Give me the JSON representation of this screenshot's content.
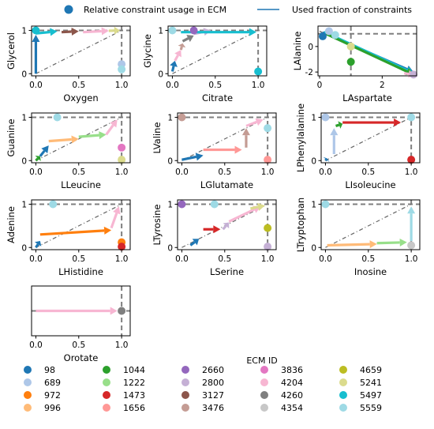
{
  "top_legend": {
    "marker_label": "Relative constraint usage in ECM",
    "line_label": "Used fraction of constraints",
    "marker_color": "#1f77b4",
    "line_color": "#1f77b4"
  },
  "colors": {
    "98": "#1f77b4",
    "689": "#aec7e8",
    "972": "#ff7f0e",
    "996": "#ffbb78",
    "1044": "#2ca02c",
    "1222": "#98df8a",
    "1473": "#d62728",
    "1656": "#ff9896",
    "2660": "#9467bd",
    "2800": "#c5b0d5",
    "3127": "#8c564b",
    "3476": "#c49c94",
    "3836": "#e377c2",
    "4204": "#f7b6d2",
    "4260": "#7f7f7f",
    "4354": "#c7c7c7",
    "4659": "#bcbd22",
    "5241": "#dbdb8d",
    "5497": "#17becf",
    "5559": "#9edae5"
  },
  "legend": {
    "title": "ECM ID",
    "items": [
      "98",
      "689",
      "972",
      "996",
      "1044",
      "1222",
      "1473",
      "1656",
      "2660",
      "2800",
      "3127",
      "3476",
      "3836",
      "4204",
      "4260",
      "4354",
      "4659",
      "5241",
      "5497",
      "5559"
    ]
  },
  "chart_data": [
    {
      "type": "line",
      "xlabel": "Oxygen",
      "ylabel": "Glycerol",
      "xlim": [
        -0.05,
        1.1
      ],
      "ylim": [
        -0.05,
        1.1
      ],
      "xticks": [
        "0.0",
        "0.5",
        "1.0"
      ],
      "yticks": [
        "0",
        "1"
      ],
      "vline": 1,
      "hline": 1,
      "diag": [
        [
          0,
          0
        ],
        [
          1,
          1
        ]
      ],
      "arrows": [
        {
          "id": "98",
          "from": [
            0,
            0
          ],
          "to": [
            0,
            0.9
          ]
        },
        {
          "id": "5497",
          "from": [
            0,
            0.93
          ],
          "to": [
            0.25,
            0.98
          ]
        },
        {
          "id": "3127",
          "from": [
            0.3,
            0.96
          ],
          "to": [
            0.5,
            0.98
          ]
        },
        {
          "id": "4204",
          "from": [
            0.55,
            0.96
          ],
          "to": [
            0.85,
            0.99
          ]
        },
        {
          "id": "5241",
          "from": [
            0.85,
            0.99
          ],
          "to": [
            0.98,
            1
          ]
        }
      ],
      "points": [
        {
          "id": "5497",
          "x": 0,
          "y": 1
        },
        {
          "id": "689",
          "x": 1,
          "y": 0.22
        },
        {
          "id": "5559",
          "x": 1,
          "y": 0.1
        }
      ]
    },
    {
      "type": "line",
      "xlabel": "Citrate",
      "ylabel": "Glycine",
      "xlim": [
        -0.05,
        1.1
      ],
      "ylim": [
        -0.05,
        1.1
      ],
      "xticks": [
        "0.0",
        "0.5",
        "1.0"
      ],
      "yticks": [
        "0",
        "1"
      ],
      "vline": 1,
      "hline": 1,
      "diag": [
        [
          0,
          0
        ],
        [
          1,
          1
        ]
      ],
      "arrows": [
        {
          "id": "98",
          "from": [
            0,
            0.05
          ],
          "to": [
            0.03,
            0.3
          ]
        },
        {
          "id": "4204",
          "from": [
            0.03,
            0.3
          ],
          "to": [
            0.1,
            0.55
          ]
        },
        {
          "id": "3476",
          "from": [
            0.1,
            0.55
          ],
          "to": [
            0.12,
            0.7
          ]
        },
        {
          "id": "4260",
          "from": [
            0.12,
            0.75
          ],
          "to": [
            0.25,
            0.88
          ]
        },
        {
          "id": "2800",
          "from": [
            0.25,
            0.92
          ],
          "to": [
            0.45,
            1
          ]
        },
        {
          "id": "5497",
          "from": [
            0.1,
            0.96
          ],
          "to": [
            0.98,
            0.96
          ]
        }
      ],
      "points": [
        {
          "id": "5559",
          "x": 0,
          "y": 1
        },
        {
          "id": "2660",
          "x": 0.25,
          "y": 1
        },
        {
          "id": "5497",
          "x": 1,
          "y": 0.05
        }
      ]
    },
    {
      "type": "line",
      "xlabel": "LAspartate",
      "ylabel": "LAlanine",
      "xlim": [
        -0.05,
        3.1
      ],
      "ylim": [
        -2.3,
        1.6
      ],
      "xticks": [
        "0",
        "2"
      ],
      "yticks": [
        "-2",
        "0"
      ],
      "vline": 1,
      "hline": 1,
      "diag": [
        [
          0,
          1.2
        ],
        [
          3,
          -2.2
        ]
      ],
      "arrows": [
        {
          "id": "98",
          "from": [
            0.1,
            1.1
          ],
          "to": [
            3,
            -2.0
          ]
        },
        {
          "id": "5497",
          "from": [
            0.15,
            1.15
          ],
          "to": [
            3,
            -2.1
          ]
        },
        {
          "id": "1044",
          "from": [
            0.2,
            1.0
          ],
          "to": [
            3,
            -2.2
          ]
        },
        {
          "id": "4204",
          "from": [
            2.7,
            -2.1
          ],
          "to": [
            3,
            -2.2
          ]
        }
      ],
      "points": [
        {
          "id": "98",
          "x": 0.1,
          "y": 0.8
        },
        {
          "id": "689",
          "x": 0.3,
          "y": 1.2
        },
        {
          "id": "5559",
          "x": 0.5,
          "y": 0.9
        },
        {
          "id": "5241",
          "x": 1,
          "y": 0
        },
        {
          "id": "1044",
          "x": 1,
          "y": -1.2
        },
        {
          "id": "2800",
          "x": 3,
          "y": -2.2
        }
      ]
    },
    {
      "type": "line",
      "xlabel": "LLeucine",
      "ylabel": "Guanine",
      "xlim": [
        -0.05,
        1.1
      ],
      "ylim": [
        -0.05,
        1.1
      ],
      "xticks": [
        "0.0",
        "0.5",
        "1.0"
      ],
      "yticks": [
        "0",
        "1"
      ],
      "vline": 1,
      "hline": 1,
      "diag": [
        [
          0,
          0
        ],
        [
          1,
          1
        ]
      ],
      "arrows": [
        {
          "id": "1044",
          "from": [
            0,
            0
          ],
          "to": [
            0.05,
            0.1
          ]
        },
        {
          "id": "98",
          "from": [
            0.05,
            0.1
          ],
          "to": [
            0.15,
            0.35
          ]
        },
        {
          "id": "996",
          "from": [
            0.15,
            0.45
          ],
          "to": [
            0.5,
            0.5
          ]
        },
        {
          "id": "1222",
          "from": [
            0.5,
            0.55
          ],
          "to": [
            0.82,
            0.6
          ]
        },
        {
          "id": "4204",
          "from": [
            0.82,
            0.6
          ],
          "to": [
            0.95,
            0.95
          ]
        }
      ],
      "points": [
        {
          "id": "5559",
          "x": 0.25,
          "y": 1
        },
        {
          "id": "3836",
          "x": 1,
          "y": 0.3
        },
        {
          "id": "5241",
          "x": 1,
          "y": 0.02
        }
      ]
    },
    {
      "type": "line",
      "xlabel": "LGlutamate",
      "ylabel": "LValine",
      "xlim": [
        -0.05,
        1.1
      ],
      "ylim": [
        -0.05,
        1.1
      ],
      "xticks": [
        "0.0",
        "0.5",
        "1.0"
      ],
      "yticks": [
        "0",
        "1"
      ],
      "vline": 1,
      "hline": 1,
      "diag": [
        [
          0,
          0
        ],
        [
          1,
          1
        ]
      ],
      "arrows": [
        {
          "id": "98",
          "from": [
            0,
            0.02
          ],
          "to": [
            0.25,
            0.12
          ]
        },
        {
          "id": "1656",
          "from": [
            0.25,
            0.25
          ],
          "to": [
            0.7,
            0.25
          ]
        },
        {
          "id": "3476",
          "from": [
            0.75,
            0.3
          ],
          "to": [
            0.75,
            0.75
          ]
        },
        {
          "id": "4204",
          "from": [
            0.75,
            0.8
          ],
          "to": [
            0.95,
            0.95
          ]
        }
      ],
      "points": [
        {
          "id": "3476",
          "x": 0,
          "y": 1
        },
        {
          "id": "5559",
          "x": 1,
          "y": 0.75
        },
        {
          "id": "1656",
          "x": 1,
          "y": 0.02
        }
      ]
    },
    {
      "type": "line",
      "xlabel": "LIsoleucine",
      "ylabel": "LPhenylalanine",
      "xlim": [
        -0.05,
        1.1
      ],
      "ylim": [
        -0.05,
        1.1
      ],
      "xticks": [
        "0.0",
        "0.5",
        "1.0"
      ],
      "yticks": [
        "0",
        "1"
      ],
      "vline": 1,
      "hline": 1,
      "diag": [
        [
          0,
          0
        ],
        [
          1,
          1
        ]
      ],
      "arrows": [
        {
          "id": "98",
          "from": [
            0,
            0
          ],
          "to": [
            0.02,
            0.05
          ]
        },
        {
          "id": "689",
          "from": [
            0.1,
            0.15
          ],
          "to": [
            0.1,
            0.75
          ]
        },
        {
          "id": "1044",
          "from": [
            0.12,
            0.8
          ],
          "to": [
            0.2,
            0.85
          ]
        },
        {
          "id": "1473",
          "from": [
            0.2,
            0.88
          ],
          "to": [
            0.88,
            0.88
          ]
        }
      ],
      "points": [
        {
          "id": "689",
          "x": 0,
          "y": 1
        },
        {
          "id": "5559",
          "x": 1,
          "y": 1
        },
        {
          "id": "1473",
          "x": 1,
          "y": 0.02
        }
      ]
    },
    {
      "type": "line",
      "xlabel": "LHistidine",
      "ylabel": "Adenine",
      "xlim": [
        -0.05,
        1.1
      ],
      "ylim": [
        -0.05,
        1.1
      ],
      "xticks": [
        "0.0",
        "0.5",
        "1.0"
      ],
      "yticks": [
        "0",
        "1"
      ],
      "vline": 1,
      "hline": 1,
      "diag": [
        [
          0,
          0
        ],
        [
          1,
          1
        ]
      ],
      "arrows": [
        {
          "id": "98",
          "from": [
            0,
            0
          ],
          "to": [
            0.05,
            0.15
          ]
        },
        {
          "id": "972",
          "from": [
            0.05,
            0.3
          ],
          "to": [
            0.88,
            0.4
          ]
        },
        {
          "id": "4204",
          "from": [
            0.88,
            0.45
          ],
          "to": [
            0.97,
            0.95
          ]
        }
      ],
      "points": [
        {
          "id": "5559",
          "x": 0.2,
          "y": 1
        },
        {
          "id": "972",
          "x": 1,
          "y": 0.12
        },
        {
          "id": "1473",
          "x": 1,
          "y": 0.02
        }
      ]
    },
    {
      "type": "line",
      "xlabel": "LSerine",
      "ylabel": "LTyrosine",
      "xlim": [
        -0.05,
        1.1
      ],
      "ylim": [
        -0.05,
        1.1
      ],
      "xticks": [
        "0.0",
        "0.5",
        "1.0"
      ],
      "yticks": [
        "0",
        "1"
      ],
      "vline": 1,
      "hline": 1,
      "diag": [
        [
          0,
          0
        ],
        [
          1,
          1
        ]
      ],
      "arrows": [
        {
          "id": "98",
          "from": [
            0.1,
            0.05
          ],
          "to": [
            0.2,
            0.2
          ]
        },
        {
          "id": "1473",
          "from": [
            0.25,
            0.42
          ],
          "to": [
            0.45,
            0.42
          ]
        },
        {
          "id": "2800",
          "from": [
            0.48,
            0.42
          ],
          "to": [
            0.55,
            0.58
          ]
        },
        {
          "id": "4204",
          "from": [
            0.55,
            0.6
          ],
          "to": [
            0.92,
            0.95
          ]
        },
        {
          "id": "5241",
          "from": [
            0.8,
            0.9
          ],
          "to": [
            0.97,
            0.97
          ]
        }
      ],
      "points": [
        {
          "id": "2660",
          "x": 0,
          "y": 1
        },
        {
          "id": "5559",
          "x": 0.38,
          "y": 1
        },
        {
          "id": "4659",
          "x": 1,
          "y": 0.45
        },
        {
          "id": "2800",
          "x": 1,
          "y": 0.02
        }
      ]
    },
    {
      "type": "line",
      "xlabel": "Inosine",
      "ylabel": "LTryptophan",
      "xlim": [
        -0.05,
        1.1
      ],
      "ylim": [
        -0.05,
        1.1
      ],
      "xticks": [
        "0.0",
        "0.5",
        "1.0"
      ],
      "yticks": [
        "0",
        "1"
      ],
      "vline": 1,
      "hline": 1,
      "diag": [
        [
          0,
          0
        ],
        [
          1,
          1
        ]
      ],
      "arrows": [
        {
          "id": "996",
          "from": [
            0.02,
            0.05
          ],
          "to": [
            0.6,
            0.08
          ]
        },
        {
          "id": "1222",
          "from": [
            0.6,
            0.1
          ],
          "to": [
            0.95,
            0.12
          ]
        },
        {
          "id": "5559",
          "from": [
            1,
            0.15
          ],
          "to": [
            1,
            0.95
          ]
        }
      ],
      "points": [
        {
          "id": "5559",
          "x": 0,
          "y": 1
        },
        {
          "id": "4354",
          "x": 1,
          "y": 0.05
        }
      ]
    },
    {
      "type": "line",
      "xlabel": "Orotate",
      "ylabel": "",
      "xlim": [
        -0.05,
        1.1
      ],
      "ylim": [
        -0.5,
        0.5
      ],
      "xticks": [
        "0.0",
        "0.5",
        "1.0"
      ],
      "yticks": [],
      "vline": 1,
      "hline": 0,
      "diag": [
        [
          0,
          0
        ],
        [
          1,
          0
        ]
      ],
      "arrows": [
        {
          "id": "4204",
          "from": [
            0,
            0
          ],
          "to": [
            0.95,
            0
          ]
        }
      ],
      "points": [
        {
          "id": "4260",
          "x": 1,
          "y": 0
        }
      ]
    }
  ]
}
